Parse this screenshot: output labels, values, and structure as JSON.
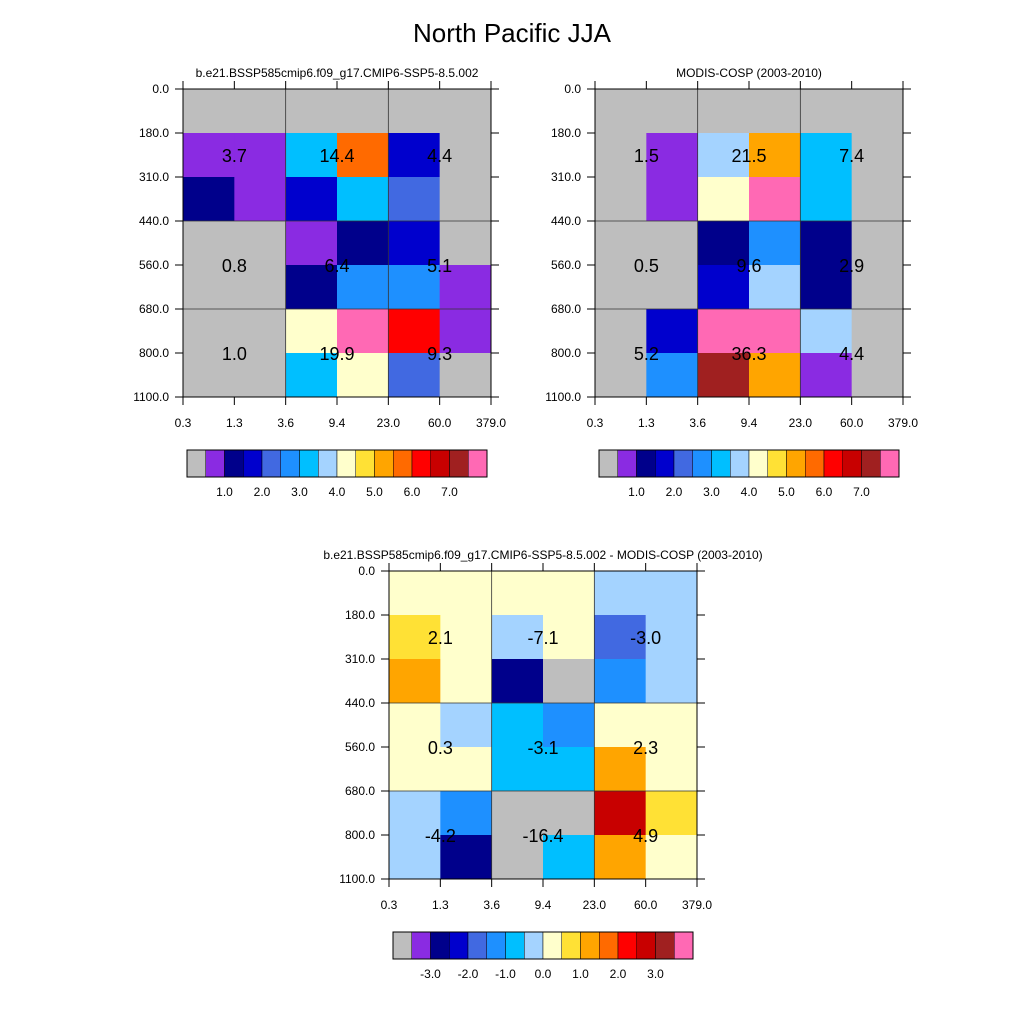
{
  "page": {
    "title": "North Pacific JJA"
  },
  "colors": {
    "missing": "#BEBEBE",
    "label_palette": [
      "#8A2BE2",
      "#00008B",
      "#0000CD",
      "#4169E1",
      "#1E90FF",
      "#00BFFF",
      "#A4D3FF",
      "#FFFFCC",
      "#FFE135",
      "#FFA500",
      "#FF6A00",
      "#FF0000",
      "#C80000",
      "#A02020",
      "#FF69B4"
    ]
  },
  "chart_data": [
    {
      "type": "heatmap",
      "id": "model",
      "title": "b.e21.BSSP585cmip6.f09_g17.CMIP6-SSP5-8.5.002",
      "x_ticks": [
        "0.3",
        "1.3",
        "3.6",
        "9.4",
        "23.0",
        "60.0",
        "379.0"
      ],
      "y_ticks": [
        "0.0",
        "180.0",
        "310.0",
        "440.0",
        "560.0",
        "680.0",
        "800.0",
        "1100.0"
      ],
      "grid_lines": "on",
      "cells": [
        [
          "#BEBEBE",
          "#BEBEBE",
          "#BEBEBE",
          "#BEBEBE",
          "#BEBEBE",
          "#BEBEBE"
        ],
        [
          "#8A2BE2",
          "#8A2BE2",
          "#00BFFF",
          "#FF6A00",
          "#0000CD",
          "#BEBEBE"
        ],
        [
          "#00008B",
          "#8A2BE2",
          "#0000CD",
          "#00BFFF",
          "#4169E1",
          "#BEBEBE"
        ],
        [
          "#BEBEBE",
          "#BEBEBE",
          "#8A2BE2",
          "#00008B",
          "#0000CD",
          "#BEBEBE"
        ],
        [
          "#BEBEBE",
          "#BEBEBE",
          "#00008B",
          "#1E90FF",
          "#1E90FF",
          "#8A2BE2"
        ],
        [
          "#BEBEBE",
          "#BEBEBE",
          "#FFFFCC",
          "#FF69B4",
          "#FF0000",
          "#8A2BE2"
        ],
        [
          "#BEBEBE",
          "#BEBEBE",
          "#00BFFF",
          "#FFFFCC",
          "#4169E1",
          "#BEBEBE"
        ]
      ],
      "annotations": [
        [
          "3.7",
          "14.4",
          "4.4"
        ],
        [
          "0.8",
          "6.4",
          "5.1"
        ],
        [
          "1.0",
          "19.9",
          "9.3"
        ]
      ],
      "colorbar": {
        "colors": [
          "#BEBEBE",
          "#8A2BE2",
          "#00008B",
          "#0000CD",
          "#4169E1",
          "#1E90FF",
          "#00BFFF",
          "#A4D3FF",
          "#FFFFCC",
          "#FFE135",
          "#FFA500",
          "#FF6A00",
          "#FF0000",
          "#C80000",
          "#A02020",
          "#FF69B4"
        ],
        "labels": [
          "1.0",
          "2.0",
          "3.0",
          "4.0",
          "5.0",
          "6.0",
          "7.0"
        ]
      }
    },
    {
      "type": "heatmap",
      "id": "obs",
      "title": "MODIS-COSP (2003-2010)",
      "x_ticks": [
        "0.3",
        "1.3",
        "3.6",
        "9.4",
        "23.0",
        "60.0",
        "379.0"
      ],
      "y_ticks": [
        "0.0",
        "180.0",
        "310.0",
        "440.0",
        "560.0",
        "680.0",
        "800.0",
        "1100.0"
      ],
      "grid_lines": "on",
      "cells": [
        [
          "#BEBEBE",
          "#BEBEBE",
          "#BEBEBE",
          "#BEBEBE",
          "#BEBEBE",
          "#BEBEBE"
        ],
        [
          "#BEBEBE",
          "#8A2BE2",
          "#A4D3FF",
          "#FFA500",
          "#00BFFF",
          "#BEBEBE"
        ],
        [
          "#BEBEBE",
          "#8A2BE2",
          "#FFFFCC",
          "#FF69B4",
          "#00BFFF",
          "#BEBEBE"
        ],
        [
          "#BEBEBE",
          "#BEBEBE",
          "#00008B",
          "#1E90FF",
          "#00008B",
          "#BEBEBE"
        ],
        [
          "#BEBEBE",
          "#BEBEBE",
          "#0000CD",
          "#A4D3FF",
          "#00008B",
          "#BEBEBE"
        ],
        [
          "#BEBEBE",
          "#0000CD",
          "#FF69B4",
          "#FF69B4",
          "#A4D3FF",
          "#BEBEBE"
        ],
        [
          "#BEBEBE",
          "#1E90FF",
          "#A02020",
          "#FFA500",
          "#8A2BE2",
          "#BEBEBE"
        ]
      ],
      "annotations": [
        [
          "1.5",
          "21.5",
          "7.4"
        ],
        [
          "0.5",
          "9.6",
          "2.9"
        ],
        [
          "5.2",
          "36.3",
          "4.4"
        ]
      ],
      "colorbar": {
        "colors": [
          "#BEBEBE",
          "#8A2BE2",
          "#00008B",
          "#0000CD",
          "#4169E1",
          "#1E90FF",
          "#00BFFF",
          "#A4D3FF",
          "#FFFFCC",
          "#FFE135",
          "#FFA500",
          "#FF6A00",
          "#FF0000",
          "#C80000",
          "#A02020",
          "#FF69B4"
        ],
        "labels": [
          "1.0",
          "2.0",
          "3.0",
          "4.0",
          "5.0",
          "6.0",
          "7.0"
        ]
      }
    },
    {
      "type": "heatmap",
      "id": "diff",
      "title": "b.e21.BSSP585cmip6.f09_g17.CMIP6-SSP5-8.5.002 - MODIS-COSP (2003-2010)",
      "x_ticks": [
        "0.3",
        "1.3",
        "3.6",
        "9.4",
        "23.0",
        "60.0",
        "379.0"
      ],
      "y_ticks": [
        "0.0",
        "180.0",
        "310.0",
        "440.0",
        "560.0",
        "680.0",
        "800.0",
        "1100.0"
      ],
      "grid_lines": "on",
      "cells": [
        [
          "#FFFFCC",
          "#FFFFCC",
          "#FFFFCC",
          "#FFFFCC",
          "#A4D3FF",
          "#A4D3FF"
        ],
        [
          "#FFE135",
          "#FFFFCC",
          "#A4D3FF",
          "#FFFFCC",
          "#4169E1",
          "#A4D3FF"
        ],
        [
          "#FFA500",
          "#FFFFCC",
          "#00008B",
          "#BEBEBE",
          "#1E90FF",
          "#A4D3FF"
        ],
        [
          "#FFFFCC",
          "#A4D3FF",
          "#00BFFF",
          "#1E90FF",
          "#FFFFCC",
          "#FFFFCC"
        ],
        [
          "#FFFFCC",
          "#FFFFCC",
          "#00BFFF",
          "#00BFFF",
          "#FFA500",
          "#FFFFCC"
        ],
        [
          "#A4D3FF",
          "#1E90FF",
          "#BEBEBE",
          "#BEBEBE",
          "#C80000",
          "#FFE135"
        ],
        [
          "#A4D3FF",
          "#00008B",
          "#BEBEBE",
          "#00BFFF",
          "#FFA500",
          "#FFFFCC"
        ]
      ],
      "annotations": [
        [
          "2.1",
          "-7.1",
          "-3.0"
        ],
        [
          "0.3",
          "-3.1",
          "2.3"
        ],
        [
          "-4.2",
          "-16.4",
          "4.9"
        ]
      ],
      "colorbar": {
        "colors": [
          "#BEBEBE",
          "#8A2BE2",
          "#00008B",
          "#0000CD",
          "#4169E1",
          "#1E90FF",
          "#00BFFF",
          "#A4D3FF",
          "#FFFFCC",
          "#FFE135",
          "#FFA500",
          "#FF6A00",
          "#FF0000",
          "#C80000",
          "#A02020",
          "#FF69B4"
        ],
        "labels": [
          "-3.0",
          "-2.0",
          "-1.0",
          "0.0",
          "1.0",
          "2.0",
          "3.0"
        ]
      }
    }
  ]
}
